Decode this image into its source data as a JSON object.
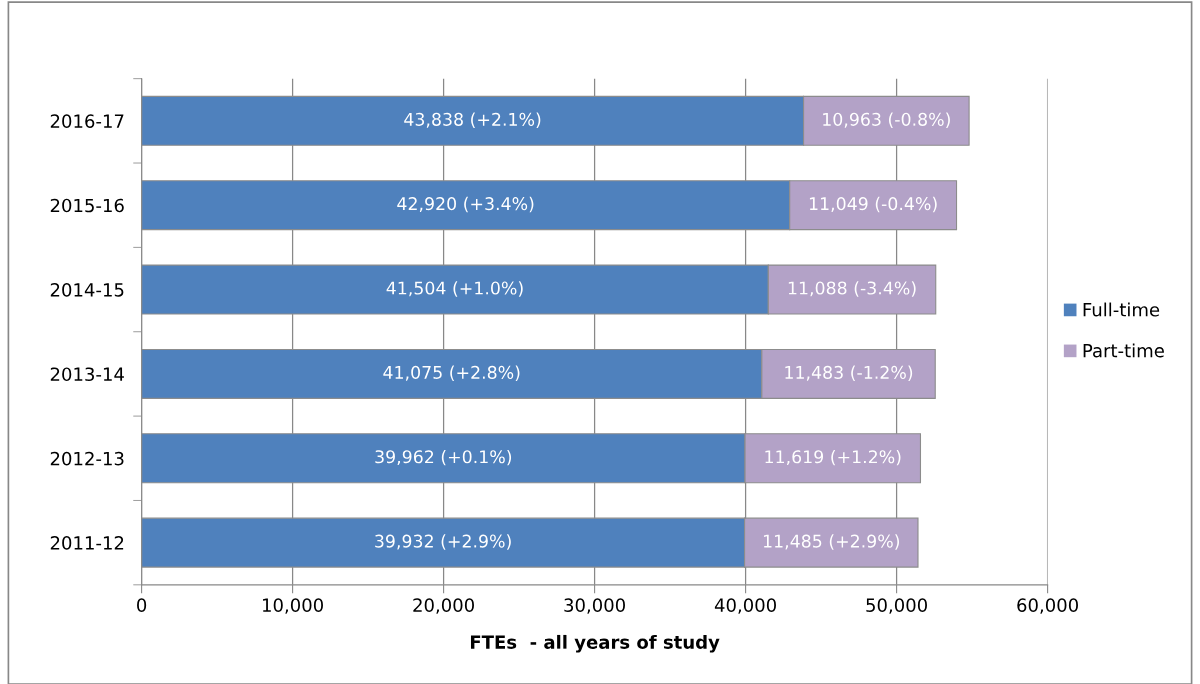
{
  "chart_data": {
    "type": "bar",
    "orientation": "horizontal",
    "stacked": true,
    "categories": [
      "2016-17",
      "2015-16",
      "2014-15",
      "2013-14",
      "2012-13",
      "2011-12"
    ],
    "series": [
      {
        "name": "Full-time",
        "color": "#4f81bd",
        "values": [
          43838,
          42920,
          41504,
          41075,
          39962,
          39932
        ],
        "value_labels": [
          "43,838 (+2.1%)",
          "42,920 (+3.4%)",
          "41,504 (+1.0%)",
          "41,075 (+2.8%)",
          "39,962 (+0.1%)",
          "39,932 (+2.9%)"
        ]
      },
      {
        "name": "Part-time",
        "color": "#b3a2c7",
        "values": [
          10963,
          11049,
          11088,
          11483,
          11619,
          11485
        ],
        "value_labels": [
          "10,963 (-0.8%)",
          "11,049 (-0.4%)",
          "11,088 (-3.4%)",
          "11,483 (-1.2%)",
          "11,619 (+1.2%)",
          "11,485 (+2.9%)"
        ]
      }
    ],
    "xlabel": "FTEs  - all years of study",
    "xlim": [
      0,
      60000
    ],
    "xticks": [
      0,
      {
        "value": 10000,
        "label": "10,000"
      },
      {
        "value": 20000,
        "label": "20,000"
      },
      {
        "value": 30000,
        "label": "30,000"
      },
      {
        "value": 40000,
        "label": "40,000"
      },
      {
        "value": 50000,
        "label": "50,000"
      },
      {
        "value": 60000,
        "label": "60,000"
      }
    ],
    "grid": "x",
    "legend": "right"
  }
}
